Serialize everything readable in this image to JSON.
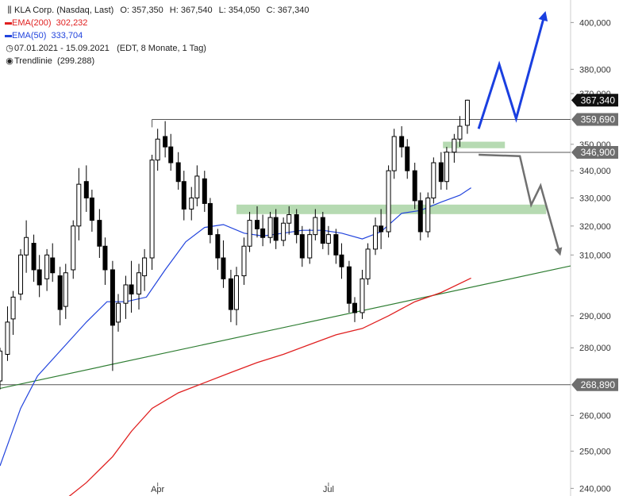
{
  "legend": {
    "symbol": "KLA Corp. (Nasdaq, Last)",
    "open_label": "O:",
    "open": "357,350",
    "high_label": "H:",
    "high": "367,540",
    "low_label": "L:",
    "low": "354,050",
    "close_label": "C:",
    "close": "367,340",
    "ema200_label": "EMA(200)",
    "ema200_value": "302,232",
    "ema50_label": "EMA(50)",
    "ema50_value": "333,704",
    "period": "07.01.2021 - 15.09.2021",
    "period_detail": "(EDT, 8 Monate, 1 Tag)",
    "trendline_label": "Trendlinie",
    "trendline_value": "(299.288)",
    "icons": {
      "symbol": "candlestick-icon",
      "period": "clock-icon",
      "trendline": "target-icon"
    }
  },
  "colors": {
    "ema200": "#e02020",
    "ema50": "#2244dd",
    "trendline": "#2e7d32",
    "zone": "#a9d3a5",
    "candle_up": "#ffffff",
    "candle_down": "#000000",
    "arrow_up": "#1a3fe0",
    "arrow_down": "#707070",
    "badge_dark": "#111111",
    "badge_gray": "#6e6e6e",
    "hline": "#555555"
  },
  "chart_data": {
    "type": "candlestick",
    "y_scale": "log",
    "ylim": [
      238000,
      410000
    ],
    "y_ticks": [
      {
        "value": 400000,
        "label": "400,000"
      },
      {
        "value": 380000,
        "label": "380,000"
      },
      {
        "value": 370000,
        "label": "370,000"
      },
      {
        "value": 350000,
        "label": "350,000"
      },
      {
        "value": 340000,
        "label": "340,000"
      },
      {
        "value": 330000,
        "label": "330,000"
      },
      {
        "value": 320000,
        "label": "320,000"
      },
      {
        "value": 310000,
        "label": "310,000"
      },
      {
        "value": 290000,
        "label": "290,000"
      },
      {
        "value": 280000,
        "label": "280,000"
      },
      {
        "value": 260000,
        "label": "260,000"
      },
      {
        "value": 250000,
        "label": "250,000"
      },
      {
        "value": 240000,
        "label": "240,000"
      }
    ],
    "x_range": [
      "2021-01-07",
      "2021-11-07"
    ],
    "x_ticks": [
      {
        "date": "2021-04-01",
        "label": "Apr"
      },
      {
        "date": "2021-07-01",
        "label": "Jul"
      }
    ],
    "price_badges": [
      {
        "value": 367340,
        "label": "367,340",
        "style": "dark"
      },
      {
        "value": 359690,
        "label": "359,690",
        "style": "gray"
      },
      {
        "value": 346900,
        "label": "346,900",
        "style": "gray"
      },
      {
        "value": 268890,
        "label": "268,890",
        "style": "gray"
      }
    ],
    "horizontal_lines": [
      {
        "value": 359690,
        "from": "2021-03-29",
        "to": "2021-11-07"
      },
      {
        "value": 346900,
        "from": "2021-08-31",
        "to": "2021-11-07"
      },
      {
        "value": 268890,
        "from": "2021-01-07",
        "to": "2021-11-07"
      }
    ],
    "zones": [
      {
        "from": "2021-05-13",
        "to": "2021-10-25",
        "low": 324200,
        "high": 327600
      },
      {
        "from": "2021-08-31",
        "to": "2021-10-03",
        "low": 348500,
        "high": 351000
      }
    ],
    "trendline": {
      "p1": {
        "date": "2021-01-07",
        "value": 267800
      },
      "p2": {
        "date": "2021-11-07",
        "value": 306300
      }
    },
    "ema200": [
      {
        "date": "2021-02-10",
        "value": 236800
      },
      {
        "date": "2021-02-22",
        "value": 241500
      },
      {
        "date": "2021-03-08",
        "value": 248500
      },
      {
        "date": "2021-03-18",
        "value": 255500
      },
      {
        "date": "2021-03-29",
        "value": 262000
      },
      {
        "date": "2021-04-12",
        "value": 266500
      },
      {
        "date": "2021-04-26",
        "value": 269500
      },
      {
        "date": "2021-05-10",
        "value": 272500
      },
      {
        "date": "2021-05-24",
        "value": 275500
      },
      {
        "date": "2021-06-07",
        "value": 278000
      },
      {
        "date": "2021-06-21",
        "value": 281000
      },
      {
        "date": "2021-07-05",
        "value": 284000
      },
      {
        "date": "2021-07-19",
        "value": 286000
      },
      {
        "date": "2021-08-02",
        "value": 290000
      },
      {
        "date": "2021-08-16",
        "value": 294500
      },
      {
        "date": "2021-08-30",
        "value": 297500
      },
      {
        "date": "2021-09-15",
        "value": 302232
      }
    ],
    "ema50": [
      {
        "date": "2021-01-07",
        "value": 246000
      },
      {
        "date": "2021-01-18",
        "value": 262000
      },
      {
        "date": "2021-01-27",
        "value": 271500
      },
      {
        "date": "2021-02-08",
        "value": 279000
      },
      {
        "date": "2021-02-22",
        "value": 288000
      },
      {
        "date": "2021-03-05",
        "value": 294500
      },
      {
        "date": "2021-03-15",
        "value": 294500
      },
      {
        "date": "2021-03-26",
        "value": 296000
      },
      {
        "date": "2021-04-05",
        "value": 305000
      },
      {
        "date": "2021-04-16",
        "value": 314500
      },
      {
        "date": "2021-04-26",
        "value": 319500
      },
      {
        "date": "2021-05-06",
        "value": 320500
      },
      {
        "date": "2021-05-17",
        "value": 317500
      },
      {
        "date": "2021-05-27",
        "value": 316500
      },
      {
        "date": "2021-06-07",
        "value": 317500
      },
      {
        "date": "2021-06-17",
        "value": 318500
      },
      {
        "date": "2021-06-28",
        "value": 318500
      },
      {
        "date": "2021-07-08",
        "value": 317500
      },
      {
        "date": "2021-07-19",
        "value": 315500
      },
      {
        "date": "2021-07-29",
        "value": 318000
      },
      {
        "date": "2021-08-09",
        "value": 324500
      },
      {
        "date": "2021-08-19",
        "value": 325500
      },
      {
        "date": "2021-08-30",
        "value": 328500
      },
      {
        "date": "2021-09-09",
        "value": 331000
      },
      {
        "date": "2021-09-15",
        "value": 333704
      }
    ],
    "candles": [
      {
        "date": "2021-01-07",
        "o": 270000,
        "h": 280000,
        "l": 267500,
        "c": 279000
      },
      {
        "date": "2021-01-11",
        "o": 278000,
        "h": 293000,
        "l": 276000,
        "c": 288000
      },
      {
        "date": "2021-01-14",
        "o": 289000,
        "h": 298000,
        "l": 284000,
        "c": 296000
      },
      {
        "date": "2021-01-18",
        "o": 297000,
        "h": 312000,
        "l": 295000,
        "c": 310000
      },
      {
        "date": "2021-01-21",
        "o": 310000,
        "h": 322000,
        "l": 304000,
        "c": 316000
      },
      {
        "date": "2021-01-25",
        "o": 314000,
        "h": 317000,
        "l": 301000,
        "c": 305000
      },
      {
        "date": "2021-01-28",
        "o": 305000,
        "h": 310000,
        "l": 296000,
        "c": 300000
      },
      {
        "date": "2021-02-01",
        "o": 302000,
        "h": 312000,
        "l": 298000,
        "c": 310000
      },
      {
        "date": "2021-02-04",
        "o": 309000,
        "h": 314000,
        "l": 301000,
        "c": 304000
      },
      {
        "date": "2021-02-08",
        "o": 303000,
        "h": 306000,
        "l": 287000,
        "c": 292000
      },
      {
        "date": "2021-02-11",
        "o": 293000,
        "h": 307000,
        "l": 289000,
        "c": 304000
      },
      {
        "date": "2021-02-15",
        "o": 305000,
        "h": 322000,
        "l": 302000,
        "c": 320000
      },
      {
        "date": "2021-02-18",
        "o": 320000,
        "h": 341000,
        "l": 315000,
        "c": 335000
      },
      {
        "date": "2021-02-22",
        "o": 336000,
        "h": 342000,
        "l": 325000,
        "c": 330000
      },
      {
        "date": "2021-02-25",
        "o": 330000,
        "h": 333000,
        "l": 318000,
        "c": 322000
      },
      {
        "date": "2021-03-01",
        "o": 322000,
        "h": 326000,
        "l": 309000,
        "c": 313000
      },
      {
        "date": "2021-03-04",
        "o": 313000,
        "h": 316000,
        "l": 300000,
        "c": 305000
      },
      {
        "date": "2021-03-08",
        "o": 305000,
        "h": 308000,
        "l": 273000,
        "c": 287000
      },
      {
        "date": "2021-03-11",
        "o": 288000,
        "h": 297000,
        "l": 285000,
        "c": 294000
      },
      {
        "date": "2021-03-15",
        "o": 294000,
        "h": 303000,
        "l": 289000,
        "c": 300000
      },
      {
        "date": "2021-03-18",
        "o": 300000,
        "h": 308000,
        "l": 291000,
        "c": 297000
      },
      {
        "date": "2021-03-22",
        "o": 297000,
        "h": 307000,
        "l": 292000,
        "c": 304000
      },
      {
        "date": "2021-03-25",
        "o": 303000,
        "h": 312000,
        "l": 298000,
        "c": 309000
      },
      {
        "date": "2021-03-29",
        "o": 309000,
        "h": 346000,
        "l": 305000,
        "c": 344000
      },
      {
        "date": "2021-04-01",
        "o": 344000,
        "h": 356000,
        "l": 340000,
        "c": 352000
      },
      {
        "date": "2021-04-05",
        "o": 353000,
        "h": 359000,
        "l": 345000,
        "c": 349000
      },
      {
        "date": "2021-04-08",
        "o": 349000,
        "h": 354000,
        "l": 340000,
        "c": 343000
      },
      {
        "date": "2021-04-12",
        "o": 343000,
        "h": 347000,
        "l": 333000,
        "c": 336000
      },
      {
        "date": "2021-04-15",
        "o": 336000,
        "h": 340000,
        "l": 322000,
        "c": 326000
      },
      {
        "date": "2021-04-19",
        "o": 326000,
        "h": 334000,
        "l": 322000,
        "c": 330000
      },
      {
        "date": "2021-04-22",
        "o": 330000,
        "h": 342000,
        "l": 327000,
        "c": 338000
      },
      {
        "date": "2021-04-26",
        "o": 337000,
        "h": 340000,
        "l": 325000,
        "c": 328000
      },
      {
        "date": "2021-04-29",
        "o": 328000,
        "h": 330000,
        "l": 314000,
        "c": 317000
      },
      {
        "date": "2021-05-03",
        "o": 317000,
        "h": 319000,
        "l": 305000,
        "c": 309000
      },
      {
        "date": "2021-05-06",
        "o": 309000,
        "h": 315000,
        "l": 299000,
        "c": 302000
      },
      {
        "date": "2021-05-10",
        "o": 302000,
        "h": 305000,
        "l": 288000,
        "c": 292000
      },
      {
        "date": "2021-05-13",
        "o": 292000,
        "h": 306000,
        "l": 287000,
        "c": 303000
      },
      {
        "date": "2021-05-17",
        "o": 303000,
        "h": 316000,
        "l": 300000,
        "c": 313000
      },
      {
        "date": "2021-05-20",
        "o": 313000,
        "h": 325000,
        "l": 311000,
        "c": 322000
      },
      {
        "date": "2021-05-24",
        "o": 322000,
        "h": 327000,
        "l": 316000,
        "c": 319000
      },
      {
        "date": "2021-05-27",
        "o": 319000,
        "h": 324000,
        "l": 313000,
        "c": 316000
      },
      {
        "date": "2021-05-31",
        "o": 316000,
        "h": 325000,
        "l": 314000,
        "c": 323000
      },
      {
        "date": "2021-06-03",
        "o": 323000,
        "h": 326000,
        "l": 312000,
        "c": 315000
      },
      {
        "date": "2021-06-07",
        "o": 315000,
        "h": 323000,
        "l": 313000,
        "c": 321000
      },
      {
        "date": "2021-06-10",
        "o": 321000,
        "h": 327000,
        "l": 317000,
        "c": 324000
      },
      {
        "date": "2021-06-14",
        "o": 324000,
        "h": 326000,
        "l": 314000,
        "c": 317000
      },
      {
        "date": "2021-06-17",
        "o": 317000,
        "h": 320000,
        "l": 306000,
        "c": 309000
      },
      {
        "date": "2021-06-21",
        "o": 309000,
        "h": 319000,
        "l": 307000,
        "c": 317000
      },
      {
        "date": "2021-06-24",
        "o": 317000,
        "h": 326000,
        "l": 315000,
        "c": 323000
      },
      {
        "date": "2021-06-28",
        "o": 323000,
        "h": 325000,
        "l": 312000,
        "c": 314000
      },
      {
        "date": "2021-07-01",
        "o": 314000,
        "h": 320000,
        "l": 310000,
        "c": 317000
      },
      {
        "date": "2021-07-05",
        "o": 317000,
        "h": 319000,
        "l": 307000,
        "c": 310000
      },
      {
        "date": "2021-07-08",
        "o": 310000,
        "h": 314000,
        "l": 302000,
        "c": 306000
      },
      {
        "date": "2021-07-12",
        "o": 306000,
        "h": 308000,
        "l": 291000,
        "c": 294000
      },
      {
        "date": "2021-07-15",
        "o": 294000,
        "h": 296000,
        "l": 288000,
        "c": 291000
      },
      {
        "date": "2021-07-19",
        "o": 291000,
        "h": 305000,
        "l": 289000,
        "c": 302000
      },
      {
        "date": "2021-07-22",
        "o": 302000,
        "h": 314000,
        "l": 300000,
        "c": 312000
      },
      {
        "date": "2021-07-26",
        "o": 312000,
        "h": 323000,
        "l": 310000,
        "c": 320000
      },
      {
        "date": "2021-07-29",
        "o": 320000,
        "h": 326000,
        "l": 312000,
        "c": 318000
      },
      {
        "date": "2021-08-02",
        "o": 318000,
        "h": 342000,
        "l": 316000,
        "c": 340000
      },
      {
        "date": "2021-08-05",
        "o": 340000,
        "h": 356000,
        "l": 337000,
        "c": 353000
      },
      {
        "date": "2021-08-09",
        "o": 353000,
        "h": 357000,
        "l": 345000,
        "c": 349000
      },
      {
        "date": "2021-08-12",
        "o": 349000,
        "h": 352000,
        "l": 337000,
        "c": 340000
      },
      {
        "date": "2021-08-16",
        "o": 340000,
        "h": 343000,
        "l": 326000,
        "c": 329000
      },
      {
        "date": "2021-08-19",
        "o": 329000,
        "h": 332000,
        "l": 315000,
        "c": 318000
      },
      {
        "date": "2021-08-23",
        "o": 318000,
        "h": 332000,
        "l": 316000,
        "c": 330000
      },
      {
        "date": "2021-08-26",
        "o": 330000,
        "h": 345000,
        "l": 328000,
        "c": 343000
      },
      {
        "date": "2021-08-30",
        "o": 343000,
        "h": 347000,
        "l": 333000,
        "c": 336000
      },
      {
        "date": "2021-09-02",
        "o": 336000,
        "h": 349000,
        "l": 333000,
        "c": 347000
      },
      {
        "date": "2021-09-06",
        "o": 347000,
        "h": 354000,
        "l": 343000,
        "c": 352000
      },
      {
        "date": "2021-09-09",
        "o": 352000,
        "h": 361000,
        "l": 349000,
        "c": 357000
      },
      {
        "date": "2021-09-13",
        "o": 357350,
        "h": 367540,
        "l": 354050,
        "c": 367340
      }
    ],
    "projections": [
      {
        "style": "up",
        "points": [
          {
            "date": "2021-09-19",
            "value": 356000
          },
          {
            "date": "2021-09-30",
            "value": 382000
          },
          {
            "date": "2021-10-09",
            "value": 360000
          },
          {
            "date": "2021-10-24",
            "value": 403000
          }
        ]
      },
      {
        "style": "down",
        "points": [
          {
            "date": "2021-09-19",
            "value": 346000
          },
          {
            "date": "2021-10-11",
            "value": 345500
          },
          {
            "date": "2021-10-17",
            "value": 327500
          },
          {
            "date": "2021-10-22",
            "value": 334500
          },
          {
            "date": "2021-11-01",
            "value": 311000
          }
        ]
      }
    ]
  }
}
